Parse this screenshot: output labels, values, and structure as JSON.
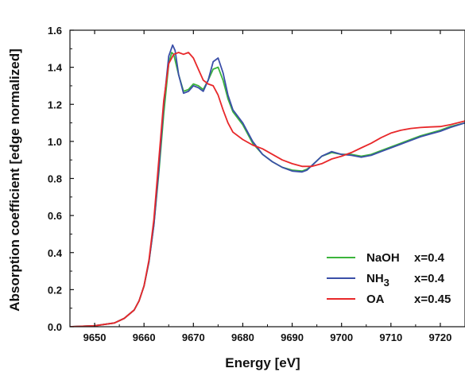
{
  "chart_data": {
    "type": "line",
    "xlabel": "Energy  [eV]",
    "ylabel": "Absorption coefficient  [edge normalized]",
    "xlim": [
      9645,
      9725
    ],
    "ylim": [
      0.0,
      1.6
    ],
    "xticks": [
      9650,
      9660,
      9670,
      9680,
      9690,
      9700,
      9710,
      9720
    ],
    "xtick_labels": [
      "9650",
      "9660",
      "9670",
      "9680",
      "9690",
      "9700",
      "9710",
      "9720"
    ],
    "yticks": [
      0.0,
      0.2,
      0.4,
      0.6,
      0.8,
      1.0,
      1.2,
      1.4,
      1.6
    ],
    "ytick_labels": [
      "0.0",
      "0.2",
      "0.4",
      "0.6",
      "0.8",
      "1.0",
      "1.2",
      "1.4",
      "1.6"
    ],
    "grid": false,
    "legend_position": "bottom-right",
    "series": [
      {
        "name": "NaOH",
        "legend_label": "NaOH",
        "legend_sub": "",
        "legend_value": "x=0.4",
        "color": "#3cb43c",
        "x": [
          9645,
          9650,
          9654,
          9656,
          9658,
          9659,
          9660,
          9661,
          9662,
          9663,
          9664,
          9665,
          9665.6,
          9666,
          9667,
          9668,
          9669,
          9670,
          9671,
          9672,
          9673,
          9674,
          9675,
          9676,
          9677,
          9678,
          9680,
          9682,
          9684,
          9686,
          9688,
          9690,
          9692,
          9693,
          9694,
          9696,
          9698,
          9700,
          9702,
          9704,
          9706,
          9708,
          9710,
          9712,
          9714,
          9716,
          9718,
          9720,
          9722,
          9725
        ],
        "y": [
          0.0,
          0.005,
          0.02,
          0.045,
          0.09,
          0.14,
          0.22,
          0.35,
          0.55,
          0.83,
          1.15,
          1.42,
          1.48,
          1.47,
          1.36,
          1.27,
          1.28,
          1.31,
          1.3,
          1.28,
          1.33,
          1.39,
          1.4,
          1.33,
          1.23,
          1.16,
          1.09,
          0.99,
          0.93,
          0.89,
          0.86,
          0.845,
          0.84,
          0.85,
          0.87,
          0.92,
          0.94,
          0.93,
          0.93,
          0.92,
          0.93,
          0.95,
          0.97,
          0.99,
          1.01,
          1.03,
          1.045,
          1.06,
          1.08,
          1.1
        ]
      },
      {
        "name": "NH3",
        "legend_label": "NH",
        "legend_sub": "3",
        "legend_value": "x=0.4",
        "color": "#3a4fa8",
        "x": [
          9645,
          9650,
          9654,
          9656,
          9658,
          9659,
          9660,
          9661,
          9662,
          9663,
          9664,
          9665,
          9665.8,
          9666.3,
          9667,
          9668,
          9669,
          9670,
          9671,
          9672,
          9673,
          9674,
          9675,
          9676,
          9677,
          9678,
          9680,
          9682,
          9684,
          9686,
          9688,
          9690,
          9692,
          9693,
          9694,
          9696,
          9698,
          9700,
          9702,
          9704,
          9706,
          9708,
          9710,
          9712,
          9714,
          9716,
          9718,
          9720,
          9722,
          9725
        ],
        "y": [
          0.0,
          0.005,
          0.02,
          0.045,
          0.09,
          0.14,
          0.22,
          0.35,
          0.55,
          0.85,
          1.2,
          1.46,
          1.52,
          1.49,
          1.36,
          1.26,
          1.27,
          1.3,
          1.29,
          1.27,
          1.33,
          1.43,
          1.45,
          1.37,
          1.25,
          1.17,
          1.1,
          1.0,
          0.93,
          0.89,
          0.86,
          0.84,
          0.835,
          0.845,
          0.87,
          0.92,
          0.945,
          0.93,
          0.925,
          0.915,
          0.925,
          0.945,
          0.965,
          0.985,
          1.005,
          1.025,
          1.04,
          1.055,
          1.075,
          1.1
        ]
      },
      {
        "name": "OA",
        "legend_label": "OA",
        "legend_sub": "",
        "legend_value": "x=0.45",
        "color": "#e8282a",
        "x": [
          9645,
          9650,
          9654,
          9656,
          9658,
          9659,
          9660,
          9661,
          9662,
          9663,
          9664,
          9665,
          9666,
          9667,
          9668,
          9669,
          9670,
          9671,
          9672,
          9673,
          9674,
          9675,
          9676,
          9677,
          9678,
          9680,
          9682,
          9684,
          9686,
          9688,
          9690,
          9692,
          9694,
          9696,
          9698,
          9700,
          9702,
          9704,
          9706,
          9708,
          9710,
          9712,
          9714,
          9716,
          9718,
          9720,
          9722,
          9725
        ],
        "y": [
          0.0,
          0.005,
          0.02,
          0.045,
          0.09,
          0.14,
          0.22,
          0.36,
          0.58,
          0.9,
          1.22,
          1.42,
          1.47,
          1.48,
          1.47,
          1.48,
          1.45,
          1.39,
          1.33,
          1.31,
          1.3,
          1.25,
          1.17,
          1.1,
          1.05,
          1.01,
          0.98,
          0.96,
          0.93,
          0.9,
          0.88,
          0.865,
          0.865,
          0.88,
          0.905,
          0.92,
          0.94,
          0.965,
          0.99,
          1.02,
          1.045,
          1.06,
          1.07,
          1.075,
          1.078,
          1.08,
          1.09,
          1.11
        ]
      }
    ]
  }
}
